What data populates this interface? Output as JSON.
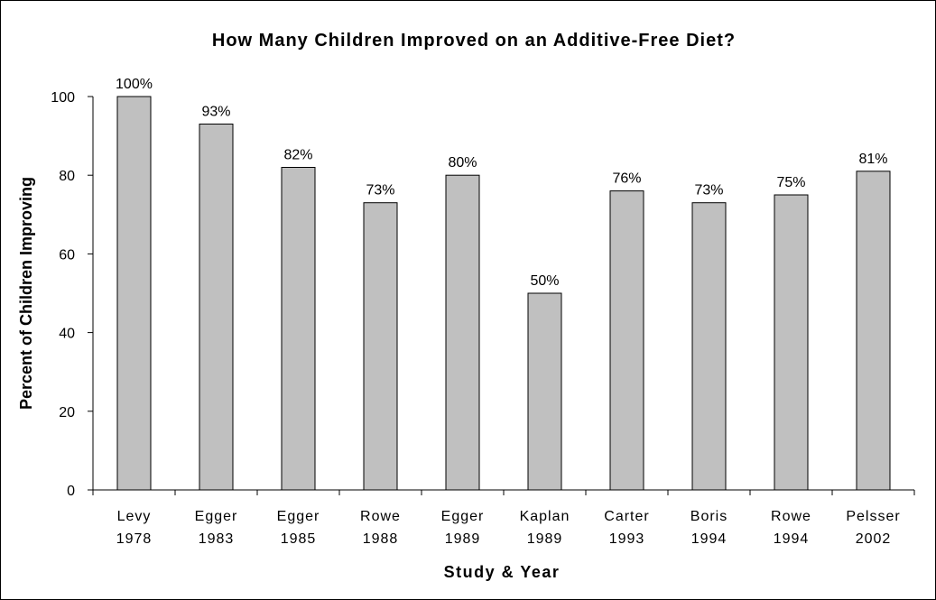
{
  "chart_data": {
    "type": "bar",
    "title": "How Many Children Improved on an Additive-Free Diet?",
    "xlabel": "Study & Year",
    "ylabel": "Percent of Children Improving",
    "categories": [
      [
        "Levy",
        "1978"
      ],
      [
        "Egger",
        "1983"
      ],
      [
        "Egger",
        "1985"
      ],
      [
        "Rowe",
        "1988"
      ],
      [
        "Egger",
        "1989"
      ],
      [
        "Kaplan",
        "1989"
      ],
      [
        "Carter",
        "1993"
      ],
      [
        "Boris",
        "1994"
      ],
      [
        "Rowe",
        "1994"
      ],
      [
        "Pelsser",
        "2002"
      ]
    ],
    "values": [
      100,
      93,
      82,
      73,
      80,
      50,
      76,
      73,
      75,
      81
    ],
    "data_labels": [
      "100%",
      "93%",
      "82%",
      "73%",
      "80%",
      "50%",
      "76%",
      "73%",
      "75%",
      "81%"
    ],
    "ylim": [
      0,
      100
    ],
    "yticks": [
      0,
      20,
      40,
      60,
      80,
      100
    ],
    "grid": false,
    "legend": "none",
    "bar_color": "#c0c0c0",
    "bar_edge_color": "#000000"
  }
}
